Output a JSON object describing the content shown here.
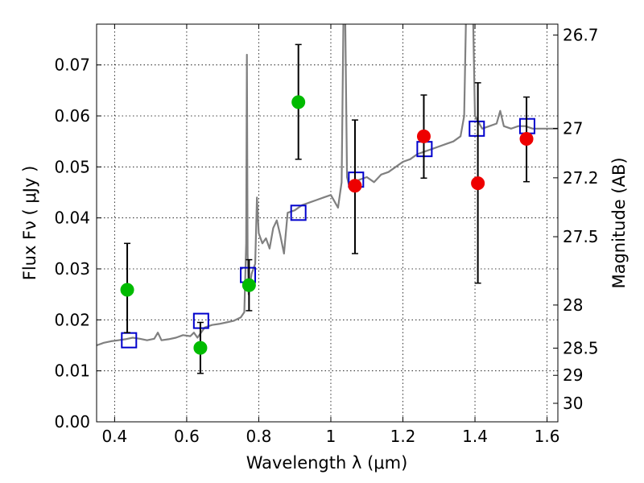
{
  "chart_data": {
    "type": "scatter",
    "xlabel": "Wavelength  λ (μm)",
    "ylabel": "Flux  Fν  ( μJy )",
    "ylabel_right": "Magnitude (AB)",
    "xlim": [
      0.35,
      1.63
    ],
    "ylim": [
      0,
      0.078
    ],
    "grid": true,
    "x_ticks": [
      0.4,
      0.6,
      0.8,
      1.0,
      1.2,
      1.4,
      1.6
    ],
    "x_tick_labels": [
      "0.4",
      "0.6",
      "0.8",
      "1",
      "1.2",
      "1.4",
      "1.6"
    ],
    "y_ticks": [
      0.0,
      0.01,
      0.02,
      0.03,
      0.04,
      0.05,
      0.06,
      0.07
    ],
    "y_tick_labels": [
      "0.00",
      "0.01",
      "0.02",
      "0.03",
      "0.04",
      "0.05",
      "0.06",
      "0.07"
    ],
    "right_ticks": [
      {
        "mag": 26.7,
        "label": "26.7"
      },
      {
        "mag": 27.0,
        "label": "27"
      },
      {
        "mag": 27.2,
        "label": "27.2"
      },
      {
        "mag": 27.5,
        "label": "27.5"
      },
      {
        "mag": 28.0,
        "label": "28"
      },
      {
        "mag": 28.5,
        "label": "28.5"
      },
      {
        "mag": 29.0,
        "label": "29"
      },
      {
        "mag": 30.0,
        "label": "30"
      }
    ],
    "model_spectrum": {
      "color": "#808080",
      "points": [
        [
          0.35,
          0.015
        ],
        [
          0.37,
          0.0155
        ],
        [
          0.39,
          0.0158
        ],
        [
          0.41,
          0.016
        ],
        [
          0.43,
          0.0162
        ],
        [
          0.45,
          0.0165
        ],
        [
          0.47,
          0.0163
        ],
        [
          0.49,
          0.016
        ],
        [
          0.51,
          0.0163
        ],
        [
          0.52,
          0.0175
        ],
        [
          0.53,
          0.016
        ],
        [
          0.55,
          0.0162
        ],
        [
          0.57,
          0.0165
        ],
        [
          0.59,
          0.017
        ],
        [
          0.61,
          0.0168
        ],
        [
          0.62,
          0.0175
        ],
        [
          0.63,
          0.0165
        ],
        [
          0.65,
          0.0185
        ],
        [
          0.67,
          0.019
        ],
        [
          0.69,
          0.0192
        ],
        [
          0.71,
          0.0195
        ],
        [
          0.73,
          0.0198
        ],
        [
          0.75,
          0.0205
        ],
        [
          0.76,
          0.0215
        ],
        [
          0.765,
          0.035
        ],
        [
          0.767,
          0.072
        ],
        [
          0.769,
          0.033
        ],
        [
          0.772,
          0.025
        ],
        [
          0.78,
          0.029
        ],
        [
          0.79,
          0.031
        ],
        [
          0.795,
          0.044
        ],
        [
          0.8,
          0.037
        ],
        [
          0.81,
          0.035
        ],
        [
          0.82,
          0.036
        ],
        [
          0.83,
          0.034
        ],
        [
          0.84,
          0.038
        ],
        [
          0.85,
          0.0395
        ],
        [
          0.86,
          0.0365
        ],
        [
          0.87,
          0.033
        ],
        [
          0.88,
          0.041
        ],
        [
          0.9,
          0.0415
        ],
        [
          0.92,
          0.0425
        ],
        [
          0.94,
          0.043
        ],
        [
          0.96,
          0.0435
        ],
        [
          0.98,
          0.044
        ],
        [
          1.0,
          0.0445
        ],
        [
          1.02,
          0.042
        ],
        [
          1.03,
          0.047
        ],
        [
          1.035,
          0.0785
        ],
        [
          1.04,
          0.0785
        ],
        [
          1.045,
          0.048
        ],
        [
          1.05,
          0.0465
        ],
        [
          1.06,
          0.047
        ],
        [
          1.08,
          0.0475
        ],
        [
          1.1,
          0.048
        ],
        [
          1.12,
          0.047
        ],
        [
          1.14,
          0.0485
        ],
        [
          1.16,
          0.049
        ],
        [
          1.18,
          0.05
        ],
        [
          1.2,
          0.051
        ],
        [
          1.22,
          0.0515
        ],
        [
          1.24,
          0.0525
        ],
        [
          1.26,
          0.053
        ],
        [
          1.28,
          0.0535
        ],
        [
          1.3,
          0.054
        ],
        [
          1.32,
          0.0545
        ],
        [
          1.34,
          0.055
        ],
        [
          1.36,
          0.056
        ],
        [
          1.37,
          0.06
        ],
        [
          1.375,
          0.0785
        ],
        [
          1.385,
          0.0785
        ],
        [
          1.39,
          0.0785
        ],
        [
          1.395,
          0.0785
        ],
        [
          1.4,
          0.06
        ],
        [
          1.42,
          0.0575
        ],
        [
          1.44,
          0.058
        ],
        [
          1.46,
          0.0585
        ],
        [
          1.47,
          0.061
        ],
        [
          1.48,
          0.058
        ],
        [
          1.5,
          0.0575
        ],
        [
          1.52,
          0.058
        ],
        [
          1.54,
          0.058
        ],
        [
          1.56,
          0.0575
        ],
        [
          1.58,
          0.0575
        ],
        [
          1.6,
          0.0575
        ],
        [
          1.63,
          0.0575
        ]
      ]
    },
    "model_photometry": {
      "color": "#0000cc",
      "points": [
        [
          0.44,
          0.016
        ],
        [
          0.64,
          0.0198
        ],
        [
          0.77,
          0.0288
        ],
        [
          0.91,
          0.041
        ],
        [
          1.07,
          0.0475
        ],
        [
          1.26,
          0.0535
        ],
        [
          1.405,
          0.0575
        ],
        [
          1.545,
          0.058
        ]
      ]
    },
    "observed_green": {
      "color": "#00bb00",
      "points": [
        {
          "x": 0.435,
          "y": 0.0259,
          "err_lo": 0.0175,
          "err_hi": 0.035
        },
        {
          "x": 0.638,
          "y": 0.0145,
          "err_lo": 0.0095,
          "err_hi": 0.0195
        },
        {
          "x": 0.773,
          "y": 0.0268,
          "err_lo": 0.0218,
          "err_hi": 0.0318
        },
        {
          "x": 0.91,
          "y": 0.0627,
          "err_lo": 0.0515,
          "err_hi": 0.074
        }
      ]
    },
    "observed_red": {
      "color": "#ee0000",
      "points": [
        {
          "x": 1.067,
          "y": 0.0463,
          "err_lo": 0.033,
          "err_hi": 0.0592
        },
        {
          "x": 1.258,
          "y": 0.056,
          "err_lo": 0.0478,
          "err_hi": 0.0641
        },
        {
          "x": 1.408,
          "y": 0.0468,
          "err_lo": 0.0272,
          "err_hi": 0.0665
        },
        {
          "x": 1.543,
          "y": 0.0555,
          "err_lo": 0.0471,
          "err_hi": 0.0637
        }
      ]
    }
  }
}
